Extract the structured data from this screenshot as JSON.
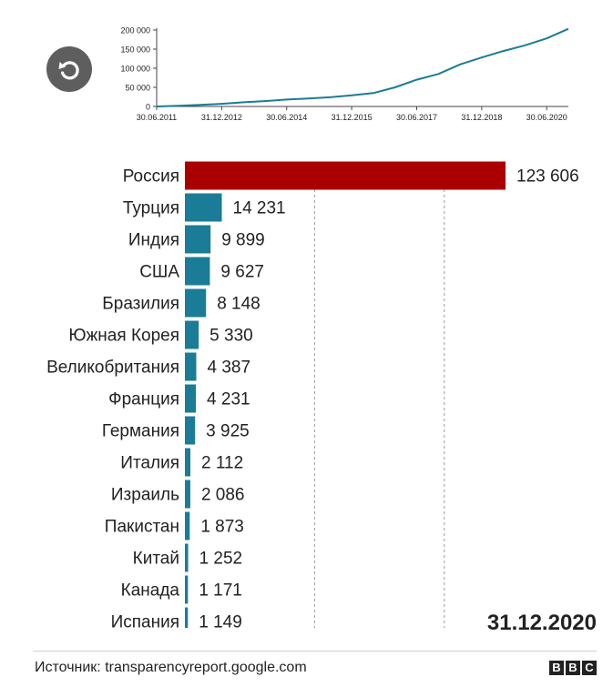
{
  "chart_data": [
    {
      "type": "line",
      "x_ticks": [
        "30.06.2011",
        "31.12.2012",
        "30.06.2014",
        "31.12.2015",
        "30.06.2017",
        "31.12.2018",
        "30.06.2020"
      ],
      "y_ticks": [
        "0",
        "50 000",
        "100 000",
        "150 000",
        "200 000"
      ],
      "ylim": [
        0,
        200000
      ],
      "x": [
        "30.06.2011",
        "31.12.2011",
        "30.06.2012",
        "31.12.2012",
        "30.06.2013",
        "31.12.2013",
        "30.06.2014",
        "31.12.2014",
        "30.06.2015",
        "31.12.2015",
        "30.06.2016",
        "31.12.2016",
        "30.06.2017",
        "31.12.2017",
        "30.06.2018",
        "31.12.2018",
        "30.06.2019",
        "31.12.2019",
        "30.06.2020",
        "31.12.2020"
      ],
      "y": [
        0,
        2000,
        4000,
        7000,
        11000,
        14000,
        18000,
        21000,
        24000,
        29000,
        35000,
        50000,
        70000,
        85000,
        110000,
        128000,
        145000,
        160000,
        178000,
        203000
      ],
      "color": "#1a7c96"
    },
    {
      "type": "bar",
      "orientation": "horizontal",
      "categories": [
        "Россия",
        "Турция",
        "Индия",
        "США",
        "Бразилия",
        "Южная Корея",
        "Великобритания",
        "Франция",
        "Германия",
        "Италия",
        "Израиль",
        "Пакистан",
        "Китай",
        "Канада",
        "Испания"
      ],
      "values": [
        123606,
        14231,
        9899,
        9627,
        8148,
        5330,
        4387,
        4231,
        3925,
        2112,
        2086,
        1873,
        1252,
        1171,
        1149
      ],
      "value_labels": [
        "123 606",
        "14 231",
        "9 899",
        "9 627",
        "8 148",
        "5 330",
        "4 387",
        "4 231",
        "3 925",
        "2 112",
        "2 086",
        "1 873",
        "1 252",
        "1 171",
        "1 149"
      ],
      "highlight_index": 0,
      "colors": {
        "highlight": "#aa0000",
        "default": "#1a7c96"
      },
      "grid": "dashed vertical"
    }
  ],
  "date_stamp": "31.12.2020",
  "footer": {
    "source": "Источник: transparencyreport.google.com",
    "logo": [
      "B",
      "B",
      "C"
    ]
  },
  "icons": {
    "replay": "replay-icon"
  }
}
